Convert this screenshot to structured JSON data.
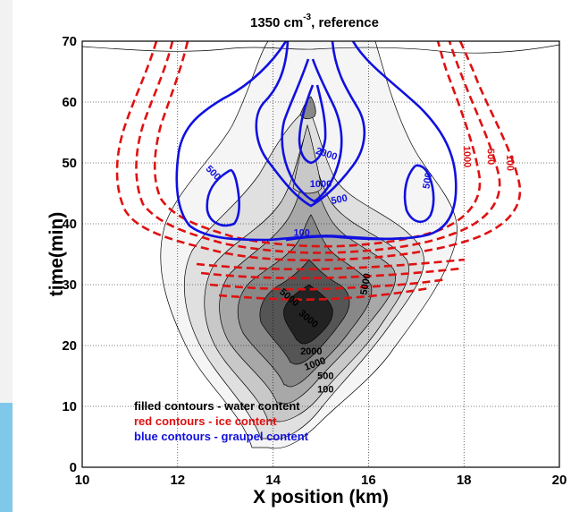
{
  "chart_data": {
    "type": "contour",
    "title": "1350 cm",
    "title_sup": "-3",
    "title_rest": ", reference",
    "xlabel": "X position (km)",
    "ylabel": "time(min)",
    "xlim": [
      10,
      20
    ],
    "ylim": [
      0,
      70
    ],
    "xticks": [
      "10",
      "12",
      "14",
      "16",
      "18",
      "20"
    ],
    "yticks": [
      "0",
      "10",
      "20",
      "30",
      "40",
      "50",
      "60",
      "70"
    ],
    "grid": true,
    "legend_text": [
      {
        "text": "filled contours - water content",
        "color": "#000000"
      },
      {
        "text": "red  contours - ice content",
        "color": "#e01010"
      },
      {
        "text": "blue contours - graupel content",
        "color": "#1010e0"
      }
    ],
    "series": [
      {
        "name": "water content",
        "style": "filled",
        "levels": [
          100,
          500,
          1000,
          2000,
          3000,
          5000
        ]
      },
      {
        "name": "ice content",
        "style": "dashed",
        "color": "#e01010",
        "levels": [
          100,
          500,
          1000
        ]
      },
      {
        "name": "graupel content",
        "style": "solid",
        "color": "#1010e0",
        "levels": [
          100,
          500,
          1000,
          2000
        ]
      }
    ],
    "contour_labels": [
      {
        "text": "100",
        "x": 18.9,
        "y": 50,
        "color": "#e01010",
        "rot": 88
      },
      {
        "text": "500",
        "x": 18.5,
        "y": 51,
        "color": "#e01010",
        "rot": 88
      },
      {
        "text": "1000",
        "x": 18.0,
        "y": 51,
        "color": "#e01010",
        "rot": 88
      },
      {
        "text": "2000",
        "x": 15.1,
        "y": 51,
        "color": "#1010e0",
        "rot": 18
      },
      {
        "text": "1000",
        "x": 15.0,
        "y": 46,
        "color": "#1010e0",
        "rot": 0
      },
      {
        "text": "500",
        "x": 15.4,
        "y": 43.5,
        "color": "#1010e0",
        "rot": -12
      },
      {
        "text": "500",
        "x": 12.7,
        "y": 48,
        "color": "#1010e0",
        "rot": 45
      },
      {
        "text": "500",
        "x": 17.3,
        "y": 47,
        "color": "#1010e0",
        "rot": -80
      },
      {
        "text": "100",
        "x": 14.6,
        "y": 38,
        "color": "#1010e0",
        "rot": 0
      },
      {
        "text": "5000",
        "x": 16.0,
        "y": 30,
        "color": "#000000",
        "rot": -80
      },
      {
        "text": "3000",
        "x": 14.7,
        "y": 24,
        "color": "#000000",
        "rot": 40
      },
      {
        "text": "5000",
        "x": 14.3,
        "y": 27.5,
        "color": "#000000",
        "rot": 40
      },
      {
        "text": "2000",
        "x": 14.8,
        "y": 18.5,
        "color": "#000000",
        "rot": 0
      },
      {
        "text": "1000",
        "x": 14.9,
        "y": 16.5,
        "color": "#000000",
        "rot": -20
      },
      {
        "text": "500",
        "x": 15.1,
        "y": 14.5,
        "color": "#000000",
        "rot": 0
      },
      {
        "text": "100",
        "x": 15.1,
        "y": 12.3,
        "color": "#000000",
        "rot": 0
      }
    ]
  }
}
